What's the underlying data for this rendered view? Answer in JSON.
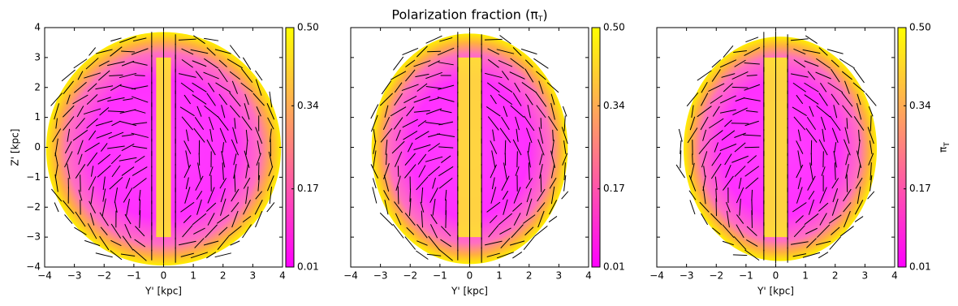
{
  "chart_data": [
    {
      "type": "heatmap",
      "xlabel": "Y' [kpc]",
      "ylabel": "Z' [kpc]",
      "xlim": [
        -4,
        4
      ],
      "ylim": [
        -4,
        4
      ],
      "xticks": [
        {
          "value": -4,
          "label": "−4"
        },
        {
          "value": -3,
          "label": "−3"
        },
        {
          "value": -2,
          "label": "−2"
        },
        {
          "value": -1,
          "label": "−1"
        },
        0,
        1,
        2,
        3,
        4
      ],
      "yticks": [
        {
          "value": -4,
          "label": "−4"
        },
        {
          "value": -3,
          "label": "−3"
        },
        {
          "value": -2,
          "label": "−2"
        },
        {
          "value": -1,
          "label": "−1"
        },
        0,
        1,
        2,
        3,
        4
      ],
      "show_yticklabels": true,
      "colorbar": {
        "lim": [
          0.01,
          0.5
        ],
        "ticks": [
          0.01,
          0.17,
          0.34,
          {
            "value": 0.5,
            "label": "0.50"
          }
        ]
      }
    },
    {
      "type": "heatmap",
      "title": "Polarization fraction (π_T)",
      "xlabel": "Y' [kpc]",
      "xlim": [
        -4,
        4
      ],
      "ylim": [
        -4,
        4
      ],
      "xticks": [
        {
          "value": -4,
          "label": "−4"
        },
        {
          "value": -3,
          "label": "−3"
        },
        {
          "value": -2,
          "label": "−2"
        },
        {
          "value": -1,
          "label": "−1"
        },
        0,
        1,
        2,
        3,
        4
      ],
      "yticks": [
        -4,
        -3,
        -2,
        -1,
        0,
        1,
        2,
        3,
        4
      ],
      "show_yticklabels": false,
      "colorbar": {
        "lim": [
          0.01,
          0.5
        ],
        "ticks": [
          0.01,
          0.17,
          0.34,
          {
            "value": 0.5,
            "label": "0.50"
          }
        ]
      }
    },
    {
      "type": "heatmap",
      "xlabel": "Y' [kpc]",
      "xlim": [
        -4,
        4
      ],
      "ylim": [
        -4,
        4
      ],
      "xticks": [
        {
          "value": -4,
          "label": "−4"
        },
        {
          "value": -3,
          "label": "−3"
        },
        {
          "value": -2,
          "label": "−2"
        },
        {
          "value": -1,
          "label": "−1"
        },
        0,
        1,
        2,
        3,
        4
      ],
      "yticks": [
        -4,
        -3,
        -2,
        -1,
        0,
        1,
        2,
        3,
        4
      ],
      "show_yticklabels": false,
      "colorbar": {
        "lim": [
          0.01,
          0.5
        ],
        "ticks": [
          0.01,
          0.17,
          0.34,
          {
            "value": 0.5,
            "label": "0.50"
          }
        ],
        "label": "π_T"
      }
    }
  ]
}
